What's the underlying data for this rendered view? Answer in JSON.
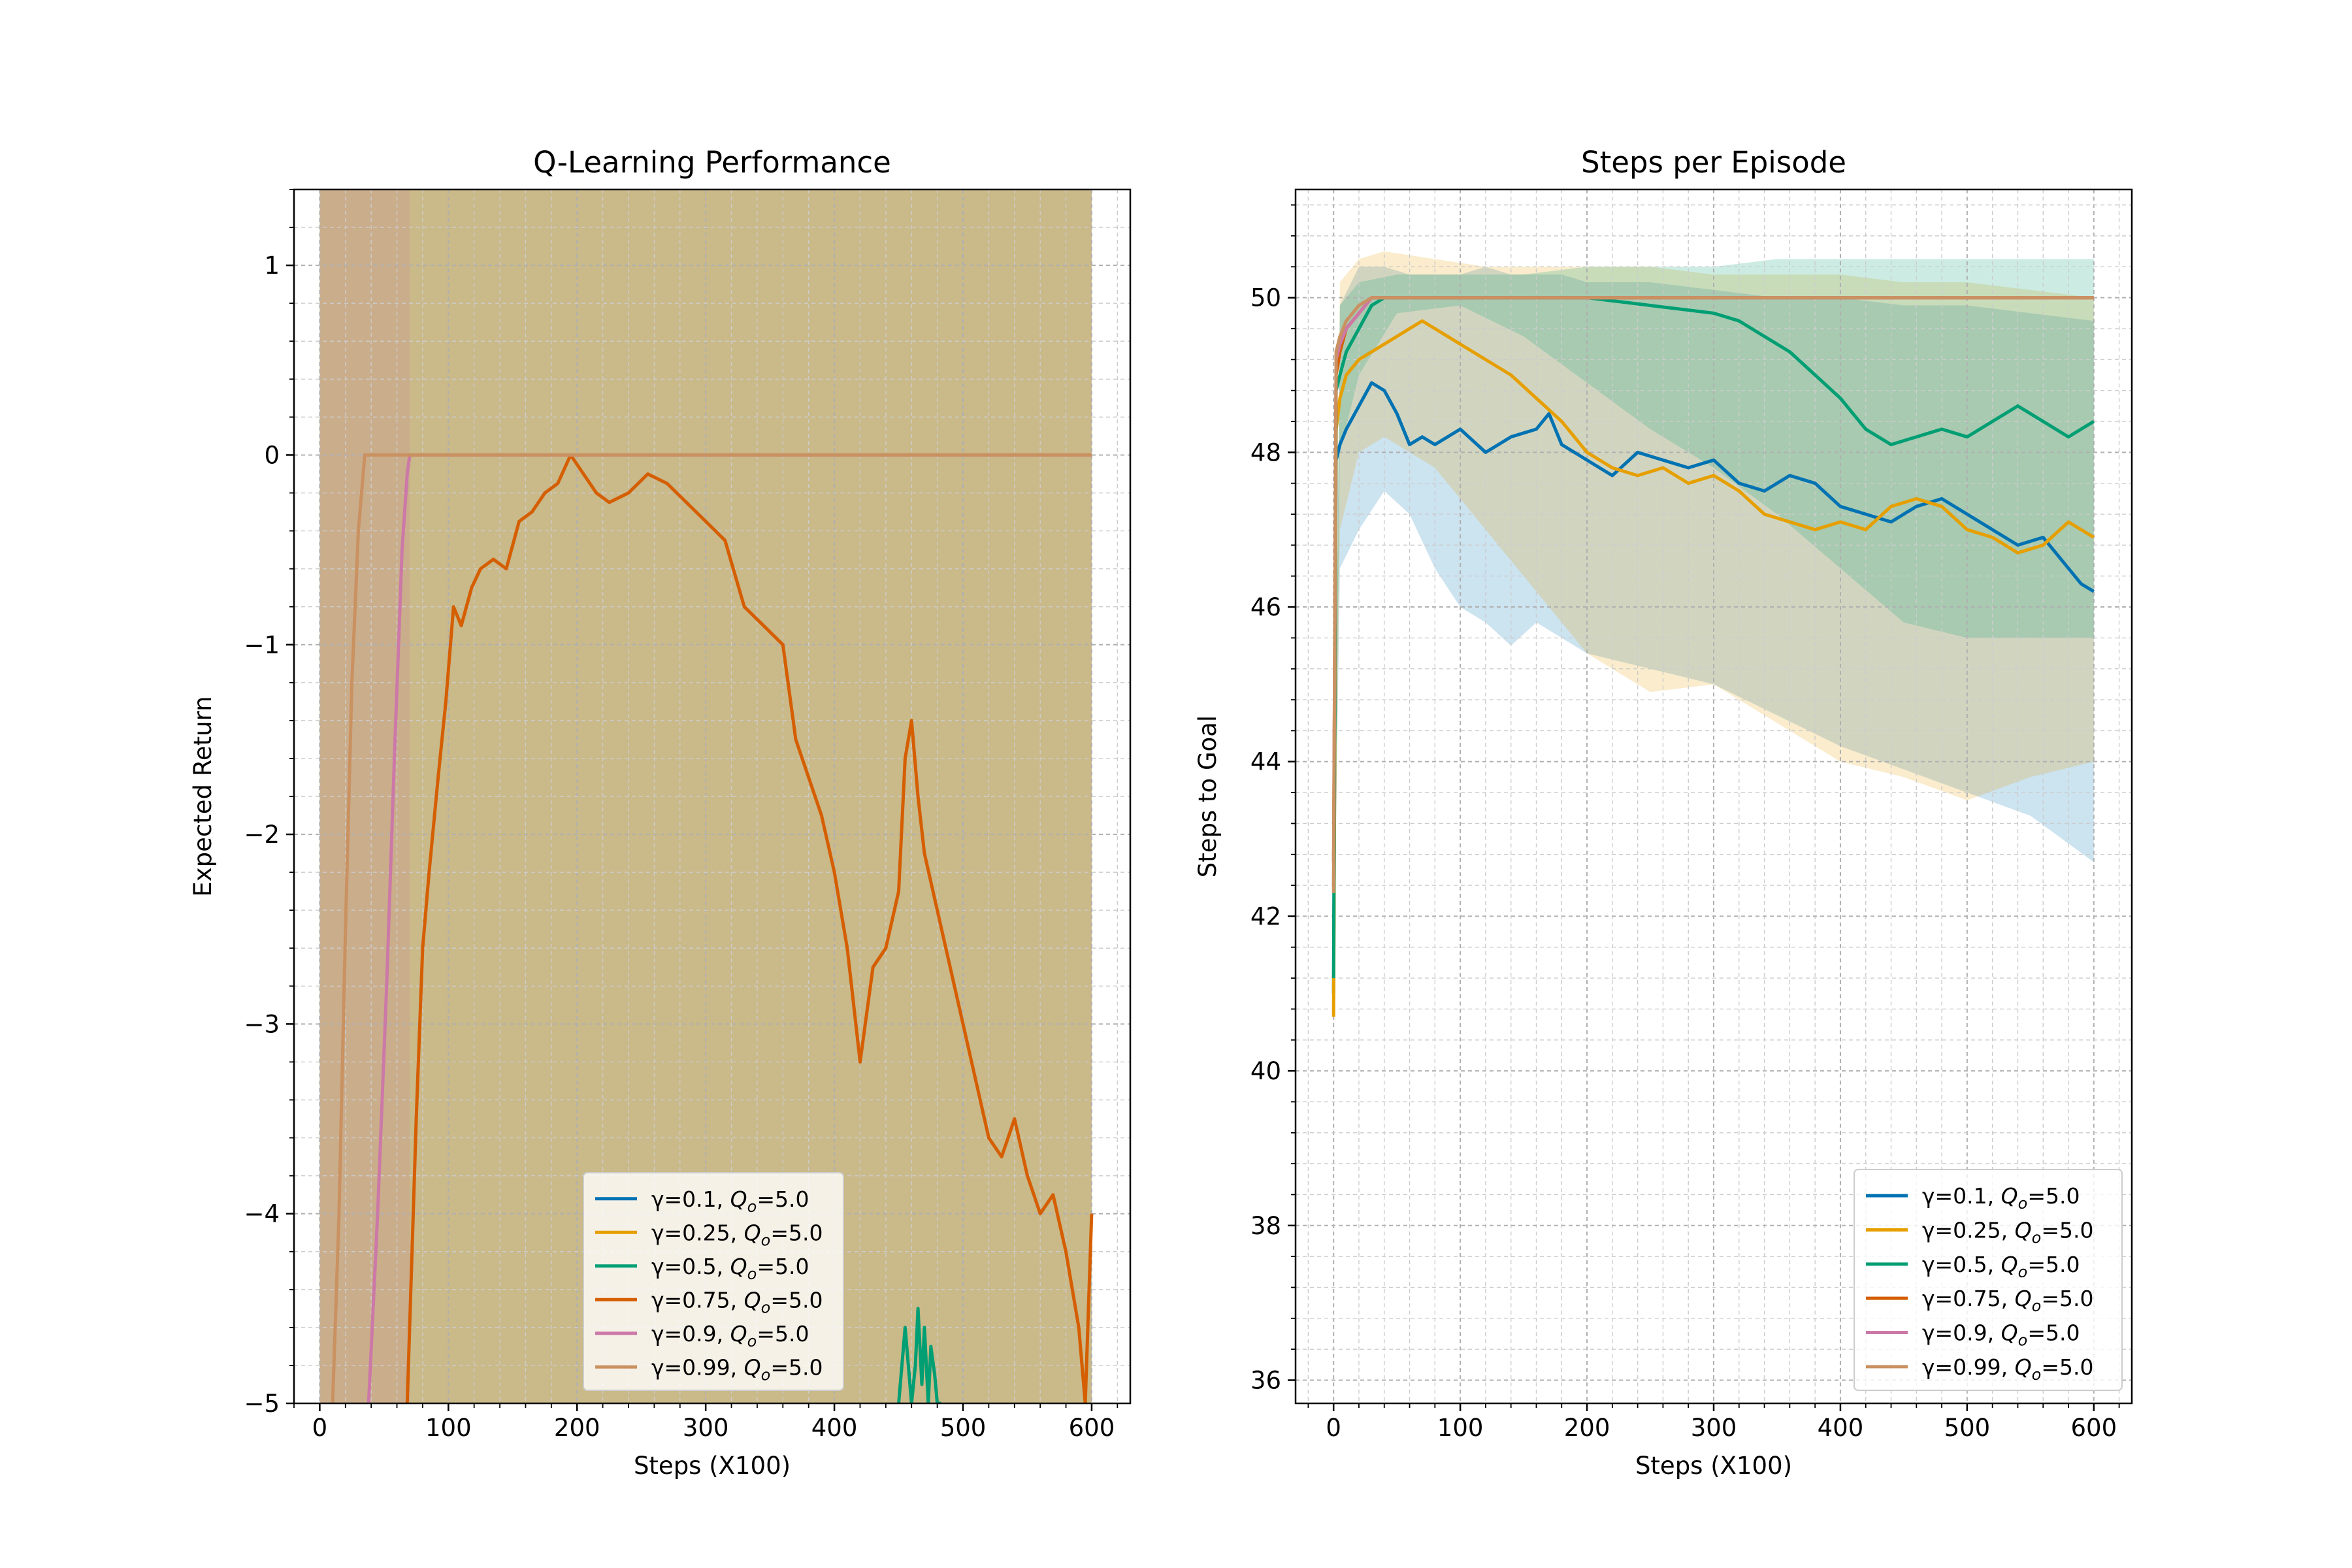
{
  "figure": {
    "background": "#ffffff"
  },
  "chart_data": [
    {
      "type": "line",
      "title": "Q-Learning Performance",
      "xlabel": "Steps (X100)",
      "ylabel": "Expected Return",
      "xlim": [
        -20,
        630
      ],
      "ylim": [
        -5,
        1.4
      ],
      "xticks": [
        0,
        100,
        200,
        300,
        400,
        500,
        600
      ],
      "yticks": [
        -5,
        -4,
        -3,
        -2,
        -1,
        0,
        1
      ],
      "ytick_labels": [
        "−5",
        "−4",
        "−3",
        "−2",
        "−1",
        "0",
        "1"
      ],
      "grid": true,
      "legend_loc": "lower-center",
      "series": [
        {
          "name": "γ=0.1, Q_o=5.0",
          "color": "#0072b2",
          "x": [],
          "y": [],
          "band": {
            "x": [
              0,
              600
            ],
            "lo": [
              -5,
              -5
            ],
            "hi": [
              -5,
              -5
            ]
          }
        },
        {
          "name": "γ=0.25, Q_o=5.0",
          "color": "#e69f00",
          "x": [],
          "y": [],
          "band": {
            "x": [
              0,
              20,
              40,
              80,
              120,
              200,
              300,
              400,
              500,
              600
            ],
            "lo": [
              -5,
              -5,
              -5,
              -5,
              -5,
              -5,
              -5,
              -5,
              -5,
              -5
            ],
            "hi": [
              1.4,
              1.4,
              1.4,
              1.4,
              1.4,
              1.4,
              1.4,
              1.4,
              1.4,
              1.4
            ]
          }
        },
        {
          "name": "γ=0.5, Q_o=5.0",
          "color": "#009e73",
          "x": [
            450,
            455,
            460,
            463,
            465,
            468,
            470,
            473,
            475,
            478,
            480,
            483
          ],
          "y": [
            -5,
            -4.6,
            -5,
            -4.8,
            -4.5,
            -4.9,
            -4.6,
            -5,
            -4.7,
            -4.85,
            -5,
            -5
          ],
          "band": {
            "x": [
              0,
              60,
              100,
              150,
              200,
              250,
              300,
              350,
              365,
              600
            ],
            "lo": [
              -5,
              -5,
              -5,
              -5,
              -5,
              -5,
              -5,
              -5,
              -5,
              -5
            ],
            "hi": [
              1.4,
              1.4,
              1.4,
              1.4,
              1.4,
              1.4,
              1.4,
              1.4,
              1.4,
              1.4
            ]
          }
        },
        {
          "name": "γ=0.75, Q_o=5.0",
          "color": "#d55e00",
          "x": [
            68,
            75,
            80,
            85,
            92,
            98,
            104,
            110,
            118,
            125,
            135,
            145,
            155,
            165,
            175,
            185,
            195,
            205,
            215,
            225,
            240,
            255,
            270,
            285,
            300,
            315,
            330,
            345,
            360,
            370,
            380,
            390,
            400,
            410,
            420,
            430,
            440,
            450,
            455,
            460,
            465,
            470,
            480,
            490,
            500,
            510,
            520,
            530,
            540,
            550,
            560,
            570,
            580,
            590,
            595,
            600
          ],
          "y": [
            -5,
            -3.5,
            -2.6,
            -2.2,
            -1.7,
            -1.3,
            -0.8,
            -0.9,
            -0.7,
            -0.6,
            -0.55,
            -0.6,
            -0.35,
            -0.3,
            -0.2,
            -0.15,
            0,
            -0.1,
            -0.2,
            -0.25,
            -0.2,
            -0.1,
            -0.15,
            -0.25,
            -0.35,
            -0.45,
            -0.8,
            -0.9,
            -1.0,
            -1.5,
            -1.7,
            -1.9,
            -2.2,
            -2.6,
            -3.2,
            -2.7,
            -2.6,
            -2.3,
            -1.6,
            -1.4,
            -1.8,
            -2.1,
            -2.4,
            -2.7,
            -3.0,
            -3.3,
            -3.6,
            -3.7,
            -3.5,
            -3.8,
            -4.0,
            -3.9,
            -4.2,
            -4.6,
            -5.0,
            -4.0
          ],
          "band": {
            "x": [
              0,
              30,
              60,
              80,
              100,
              150,
              200,
              250,
              300,
              400,
              500,
              600
            ],
            "lo": [
              -5,
              -5,
              -5,
              -5,
              -5,
              -5,
              -5,
              -5,
              -5,
              -5,
              -5,
              -5
            ],
            "hi": [
              1.4,
              1.4,
              1.4,
              1.4,
              1.4,
              1.4,
              1.4,
              1.4,
              1.4,
              1.4,
              1.4,
              1.4
            ]
          }
        },
        {
          "name": "γ=0.9, Q_o=5.0",
          "color": "#cc79a7",
          "x": [
            38,
            45,
            52,
            58,
            64,
            68,
            70,
            600
          ],
          "y": [
            -5,
            -4.0,
            -2.8,
            -1.6,
            -0.5,
            -0.1,
            0,
            0
          ],
          "band": {
            "x": [
              0,
              20,
              40,
              60,
              70
            ],
            "lo": [
              -5,
              -5,
              -5,
              -5,
              -5
            ],
            "hi": [
              1.4,
              1.4,
              1.4,
              1.4,
              1.4
            ]
          }
        },
        {
          "name": "γ=0.99, Q_o=5.0",
          "color": "#ca9161",
          "x": [
            10,
            15,
            20,
            25,
            30,
            35,
            600
          ],
          "y": [
            -5,
            -4.0,
            -2.5,
            -1.2,
            -0.4,
            0,
            0
          ],
          "band": {
            "x": [
              0,
              600
            ],
            "lo": [
              -5,
              -5
            ],
            "hi": [
              1.4,
              1.4
            ]
          }
        }
      ]
    },
    {
      "type": "line",
      "title": "Steps per Episode",
      "xlabel": "Steps (X100)",
      "ylabel": "Steps to Goal",
      "xlim": [
        -30,
        630
      ],
      "ylim": [
        35.7,
        51.4
      ],
      "xticks": [
        0,
        100,
        200,
        300,
        400,
        500,
        600
      ],
      "yticks": [
        36,
        38,
        40,
        42,
        44,
        46,
        48,
        50
      ],
      "ytick_labels": [
        "36",
        "38",
        "40",
        "42",
        "44",
        "46",
        "48",
        "50"
      ],
      "grid": true,
      "legend_loc": "lower-right",
      "series": [
        {
          "name": "γ=0.1, Q_o=5.0",
          "color": "#0072b2",
          "x": [
            0,
            2,
            5,
            10,
            20,
            30,
            40,
            50,
            60,
            70,
            80,
            100,
            120,
            140,
            160,
            170,
            180,
            200,
            220,
            240,
            260,
            280,
            300,
            320,
            340,
            360,
            380,
            400,
            420,
            440,
            460,
            480,
            500,
            520,
            540,
            560,
            580,
            590,
            600
          ],
          "y": [
            41.0,
            47.9,
            48.1,
            48.3,
            48.6,
            48.9,
            48.8,
            48.5,
            48.1,
            48.2,
            48.1,
            48.3,
            48.0,
            48.2,
            48.3,
            48.5,
            48.1,
            47.9,
            47.7,
            48.0,
            47.9,
            47.8,
            47.9,
            47.6,
            47.5,
            47.7,
            47.6,
            47.3,
            47.2,
            47.1,
            47.3,
            47.4,
            47.2,
            47.0,
            46.8,
            46.9,
            46.5,
            46.3,
            46.2
          ],
          "band": {
            "x": [
              0,
              5,
              20,
              40,
              60,
              80,
              100,
              120,
              140,
              160,
              180,
              200,
              250,
              300,
              350,
              400,
              450,
              500,
              550,
              600
            ],
            "lo": [
              41.0,
              46.5,
              47.0,
              47.5,
              47.2,
              46.5,
              46.0,
              45.8,
              45.5,
              45.8,
              45.6,
              45.4,
              45.2,
              45.0,
              44.6,
              44.2,
              43.9,
              43.6,
              43.3,
              42.7
            ],
            "hi": [
              41.0,
              49.9,
              50.4,
              50.4,
              50.3,
              50.3,
              50.3,
              50.4,
              50.3,
              50.3,
              50.3,
              50.2,
              50.2,
              50.1,
              50.0,
              50.0,
              49.9,
              49.9,
              49.8,
              49.7
            ]
          }
        },
        {
          "name": "γ=0.25, Q_o=5.0",
          "color": "#e69f00",
          "x": [
            0,
            2,
            5,
            10,
            20,
            30,
            40,
            50,
            60,
            70,
            80,
            100,
            120,
            140,
            160,
            180,
            200,
            220,
            240,
            260,
            280,
            300,
            320,
            340,
            360,
            380,
            400,
            420,
            440,
            460,
            480,
            500,
            520,
            540,
            560,
            580,
            600
          ],
          "y": [
            40.7,
            48.3,
            48.7,
            49.0,
            49.2,
            49.3,
            49.4,
            49.5,
            49.6,
            49.7,
            49.6,
            49.4,
            49.2,
            49.0,
            48.7,
            48.4,
            48.0,
            47.8,
            47.7,
            47.8,
            47.6,
            47.7,
            47.5,
            47.2,
            47.1,
            47.0,
            47.1,
            47.0,
            47.3,
            47.4,
            47.3,
            47.0,
            46.9,
            46.7,
            46.8,
            47.1,
            46.9
          ],
          "band": {
            "x": [
              0,
              5,
              20,
              40,
              80,
              120,
              160,
              200,
              250,
              300,
              350,
              400,
              450,
              500,
              550,
              600
            ],
            "lo": [
              40.7,
              47.0,
              48.0,
              48.2,
              47.8,
              47.0,
              46.2,
              45.4,
              44.9,
              45.0,
              44.5,
              44.0,
              43.8,
              43.5,
              43.8,
              44.0
            ],
            "hi": [
              40.7,
              50.2,
              50.5,
              50.6,
              50.5,
              50.4,
              50.4,
              50.4,
              50.4,
              50.3,
              50.3,
              50.3,
              50.2,
              50.2,
              50.1,
              50.0
            ]
          }
        },
        {
          "name": "γ=0.5, Q_o=5.0",
          "color": "#009e73",
          "x": [
            0,
            2,
            5,
            10,
            20,
            30,
            40,
            50,
            200,
            250,
            300,
            320,
            340,
            360,
            380,
            400,
            420,
            440,
            460,
            480,
            500,
            520,
            540,
            560,
            580,
            600
          ],
          "y": [
            41.2,
            48.8,
            49.0,
            49.3,
            49.6,
            49.9,
            50.0,
            50.0,
            50.0,
            49.9,
            49.8,
            49.7,
            49.5,
            49.3,
            49.0,
            48.7,
            48.3,
            48.1,
            48.2,
            48.3,
            48.2,
            48.4,
            48.6,
            48.4,
            48.2,
            48.4
          ],
          "band": {
            "x": [
              0,
              5,
              20,
              50,
              100,
              150,
              200,
              250,
              300,
              350,
              400,
              450,
              500,
              550,
              600
            ],
            "lo": [
              41.2,
              48.0,
              49.0,
              49.8,
              49.9,
              49.5,
              48.9,
              48.3,
              47.8,
              47.2,
              46.5,
              45.8,
              45.6,
              45.6,
              45.6
            ],
            "hi": [
              41.2,
              49.9,
              50.2,
              50.3,
              50.3,
              50.3,
              50.4,
              50.4,
              50.4,
              50.5,
              50.5,
              50.5,
              50.5,
              50.5,
              50.5
            ]
          }
        },
        {
          "name": "γ=0.75, Q_o=5.0",
          "color": "#d55e00",
          "x": [
            0,
            2,
            5,
            10,
            20,
            30,
            600
          ],
          "y": [
            42.7,
            49.0,
            49.3,
            49.6,
            49.8,
            50.0,
            50.0
          ],
          "band": {
            "x": [
              0,
              600
            ],
            "lo": [
              42.7,
              42.7
            ],
            "hi": [
              42.7,
              42.7
            ]
          }
        },
        {
          "name": "γ=0.9, Q_o=5.0",
          "color": "#cc79a7",
          "x": [
            0,
            2,
            5,
            10,
            20,
            30,
            600
          ],
          "y": [
            42.4,
            49.2,
            49.4,
            49.6,
            49.8,
            50.0,
            50.0
          ],
          "band": {
            "x": [
              0,
              600
            ],
            "lo": [
              42.4,
              42.4
            ],
            "hi": [
              42.4,
              42.4
            ]
          }
        },
        {
          "name": "γ=0.99, Q_o=5.0",
          "color": "#ca9161",
          "x": [
            0,
            2,
            5,
            10,
            20,
            30,
            600
          ],
          "y": [
            42.3,
            49.3,
            49.5,
            49.7,
            49.9,
            50.0,
            50.0
          ],
          "band": {
            "x": [
              0,
              600
            ],
            "lo": [
              42.3,
              42.3
            ],
            "hi": [
              42.3,
              42.3
            ]
          }
        }
      ]
    }
  ]
}
